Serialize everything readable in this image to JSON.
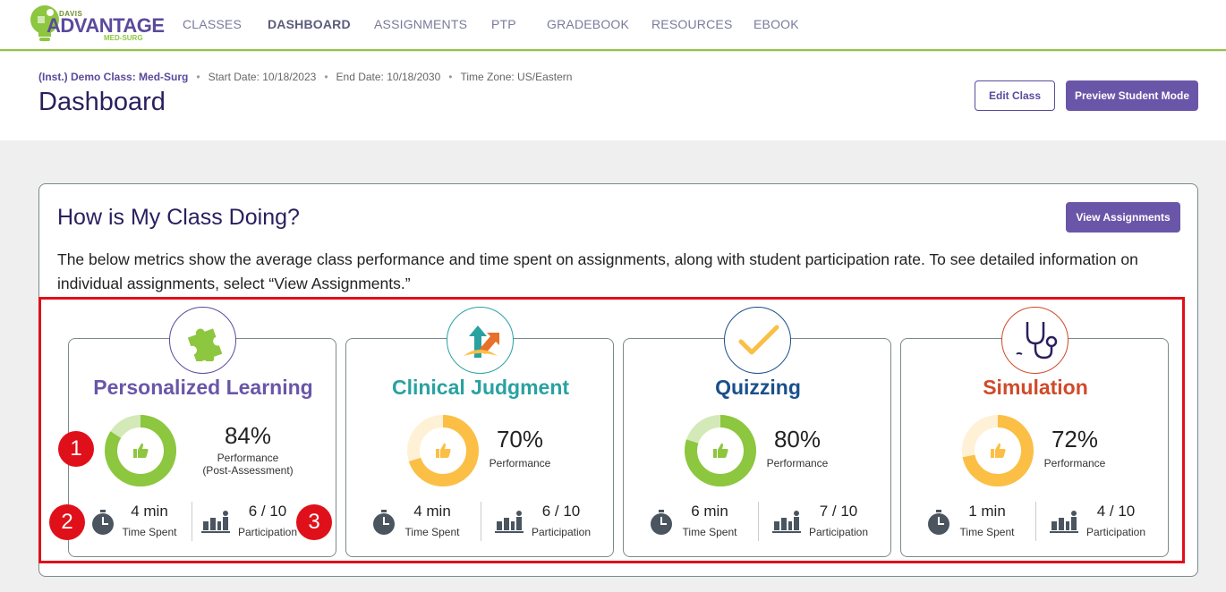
{
  "logo": {
    "davis": "DAVIS",
    "brand": "ADVANTAGE",
    "sub": "MED-SURG"
  },
  "nav": [
    {
      "label": "CLASSES",
      "active": false
    },
    {
      "label": "DASHBOARD",
      "active": true
    },
    {
      "label": "ASSIGNMENTS",
      "active": false
    },
    {
      "label": "PTP",
      "active": false
    },
    {
      "label": "GRADEBOOK",
      "active": false
    },
    {
      "label": "RESOURCES",
      "active": false
    },
    {
      "label": "EBOOK",
      "active": false
    }
  ],
  "header": {
    "class_name": "(Inst.) Demo Class: Med-Surg",
    "start_date": "Start Date: 10/18/2023",
    "end_date": "End Date: 10/18/2030",
    "time_zone": "Time Zone: US/Eastern",
    "title": "Dashboard",
    "edit_label": "Edit Class",
    "preview_label": "Preview Student Mode"
  },
  "overview": {
    "title": "How is My Class Doing?",
    "view_label": "View Assignments",
    "description": "The below metrics show the average class performance and time spent on assignments, along with student participation rate. To see detailed information on individual assignments, select “View Assignments.”"
  },
  "metrics": [
    {
      "title": "Personalized Learning",
      "color": "#6a56a8",
      "ring": "#8dc63f",
      "track": "#d4e9b8",
      "icon": "puzzle-icon",
      "performance": 84,
      "percent": "84%",
      "perf_label": "Performance",
      "perf_sub": "(Post-Assessment)",
      "time": "4 min",
      "time_label": "Time Spent",
      "participation": "6 / 10",
      "part_label": "Participation"
    },
    {
      "title": "Clinical Judgment",
      "color": "#2aa1a1",
      "ring": "#fbbf45",
      "track": "#fef1d6",
      "icon": "arrows-icon",
      "performance": 70,
      "percent": "70%",
      "perf_label": "Performance",
      "perf_sub": "",
      "time": "4 min",
      "time_label": "Time Spent",
      "participation": "6 / 10",
      "part_label": "Participation"
    },
    {
      "title": "Quizzing",
      "color": "#1a4f8a",
      "ring": "#8dc63f",
      "track": "#d4e9b8",
      "icon": "checkmark-icon",
      "performance": 80,
      "percent": "80%",
      "perf_label": "Performance",
      "perf_sub": "",
      "time": "6 min",
      "time_label": "Time Spent",
      "participation": "7 / 10",
      "part_label": "Participation"
    },
    {
      "title": "Simulation",
      "color": "#d04a2a",
      "ring": "#fbbf45",
      "track": "#fef1d6",
      "icon": "stethoscope-icon",
      "performance": 72,
      "percent": "72%",
      "perf_label": "Performance",
      "perf_sub": "",
      "time": "1 min",
      "time_label": "Time Spent",
      "participation": "4 / 10",
      "part_label": "Participation"
    }
  ],
  "badges": [
    "1",
    "2",
    "3"
  ]
}
